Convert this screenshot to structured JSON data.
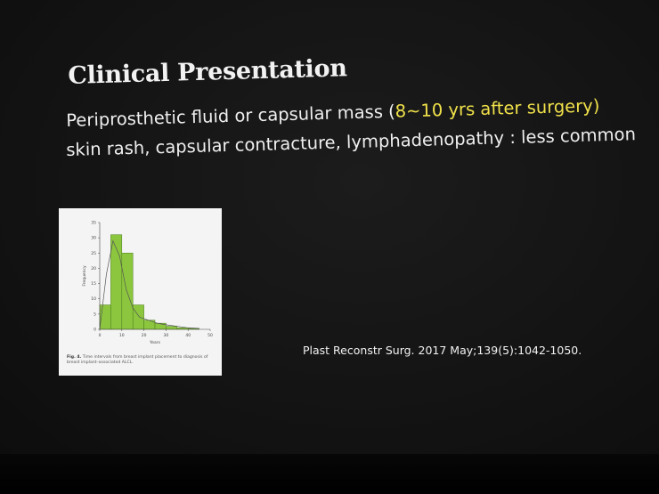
{
  "slide": {
    "title": "Clinical Presentation",
    "line1_text": "Periprosthetic fluid or capsular mass (",
    "line1_highlight": "8~10 yrs after surgery)",
    "line2": "skin rash, capsular contracture, lymphadenopathy : less common",
    "highlight_color": "#f0e14a",
    "citation": "Plast Reconstr Surg. 2017 May;139(5):1042-1050."
  },
  "figure": {
    "caption_label": "Fig. 4.",
    "caption_text": "Time intervals from breast implant placement to diagnosis of breast implant–associated ALCL."
  },
  "chart_data": {
    "type": "bar",
    "title": "",
    "xlabel": "Years",
    "ylabel": "Frequency",
    "bar_width": 5,
    "bins": [
      0,
      5,
      10,
      15,
      20,
      25,
      30,
      35,
      40
    ],
    "values": [
      8,
      31,
      25,
      8,
      3,
      2,
      1,
      0.5,
      0.3
    ],
    "density_curve": {
      "x": [
        0,
        3,
        6,
        9,
        12,
        15,
        18,
        22,
        26,
        30,
        35,
        40,
        45
      ],
      "y": [
        0,
        18,
        29,
        24,
        13,
        7,
        4,
        3,
        2,
        1.5,
        1,
        0.5,
        0.3
      ]
    },
    "xlim": [
      0,
      50
    ],
    "ylim": [
      0,
      35
    ],
    "xticks": [
      0,
      10,
      20,
      30,
      40,
      50
    ],
    "yticks": [
      0,
      5,
      10,
      15,
      20,
      25,
      30,
      35
    ],
    "bar_color": "#8cc63e",
    "edge_color": "#4a7a1e",
    "grid": false
  }
}
